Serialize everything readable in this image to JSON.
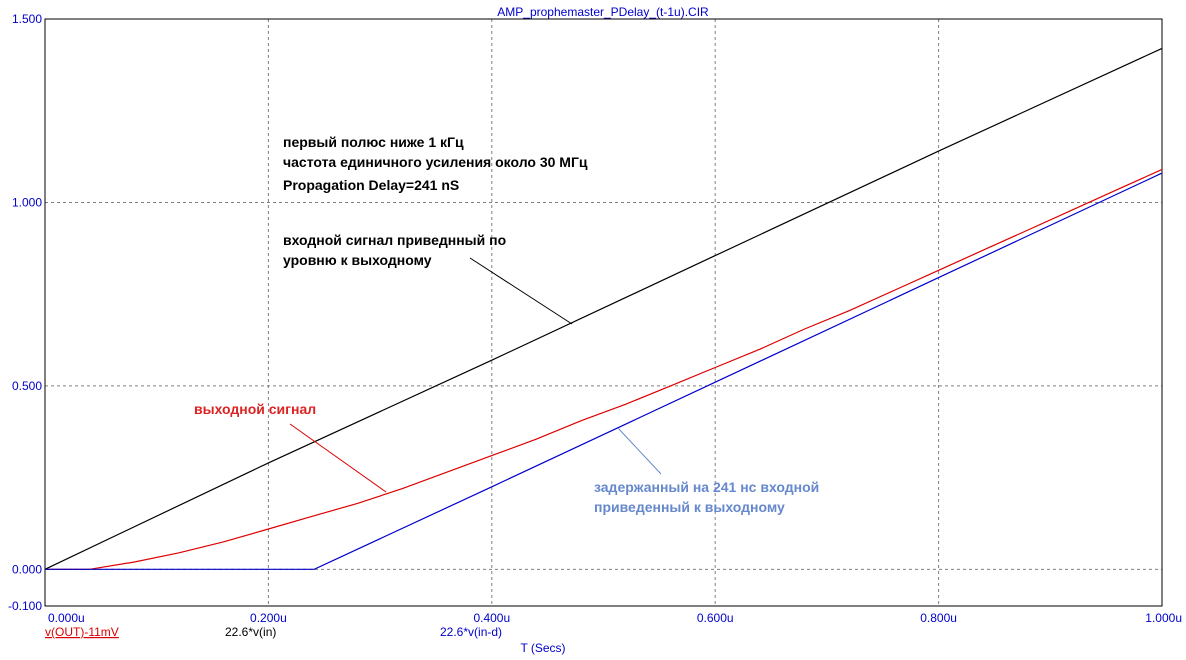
{
  "title": "AMP_prophemaster_PDelay_(t-1u).CIR",
  "chart_data": {
    "type": "line",
    "xlabel": "T (Secs)",
    "xlim": [
      0,
      1.0
    ],
    "ylim": [
      -0.1,
      1.5
    ],
    "x_ticks": [
      "0.000u",
      "0.200u",
      "0.400u",
      "0.600u",
      "0.800u",
      "1.000u"
    ],
    "y_ticks": [
      "1.500",
      "1.000",
      "0.500",
      "0.000",
      "-0.100"
    ],
    "grid": true,
    "series": [
      {
        "name": "v(OUT)-11mV",
        "color": "#dd0000",
        "x": [
          0,
          0.04,
          0.08,
          0.12,
          0.16,
          0.2,
          0.24,
          0.28,
          0.32,
          0.36,
          0.4,
          0.44,
          0.48,
          0.52,
          0.56,
          0.6,
          0.64,
          0.68,
          0.72,
          0.76,
          0.8,
          0.84,
          0.88,
          0.92,
          0.96,
          1.0
        ],
        "y": [
          0.0,
          0.0,
          0.02,
          0.045,
          0.075,
          0.11,
          0.145,
          0.18,
          0.22,
          0.265,
          0.31,
          0.355,
          0.405,
          0.45,
          0.5,
          0.55,
          0.6,
          0.655,
          0.705,
          0.76,
          0.815,
          0.87,
          0.925,
          0.98,
          1.035,
          1.09
        ]
      },
      {
        "name": "22.6*v(in)",
        "color": "#000000",
        "x": [
          0,
          0.2,
          0.4,
          0.6,
          0.8,
          1.0
        ],
        "y": [
          0.0,
          0.29,
          0.57,
          0.855,
          1.14,
          1.42
        ]
      },
      {
        "name": "22.6*v(in-d)",
        "color": "#0000cc",
        "x": [
          0,
          0.241,
          0.4,
          0.6,
          0.8,
          1.0
        ],
        "y": [
          0.0,
          0.0,
          0.225,
          0.51,
          0.795,
          1.08
        ]
      }
    ],
    "annotations": [
      {
        "text": "первый полюс ниже 1 кГц",
        "color": "#000000"
      },
      {
        "text": "частота единичного усиления около 30 МГц",
        "color": "#000000"
      },
      {
        "text": "Propagation Delay=241 nS",
        "color": "#000000"
      },
      {
        "text": "входной сигнал приведнный по",
        "color": "#000000"
      },
      {
        "text": "уровню к выходному",
        "color": "#000000"
      },
      {
        "text": "выходной сигнал",
        "color": "#dd2222"
      },
      {
        "text": "задержанный на 241 нс входной",
        "color": "#6688cc"
      },
      {
        "text": "приведенный к выходному",
        "color": "#6688cc"
      }
    ]
  }
}
